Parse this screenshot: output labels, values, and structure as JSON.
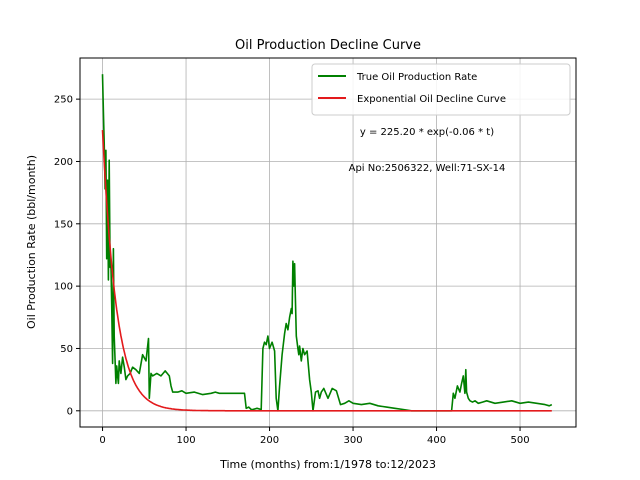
{
  "chart_data": {
    "type": "line",
    "title": "Oil Production Decline Curve",
    "xlabel": "Time (months) from:1/1978 to:12/2023",
    "ylabel": "Oil Production Rate (bbl/month)",
    "xlim": [
      -27,
      567
    ],
    "ylim": [
      -13,
      283
    ],
    "xticks": [
      0,
      100,
      200,
      300,
      400,
      500
    ],
    "yticks": [
      0,
      50,
      100,
      150,
      200,
      250
    ],
    "grid": true,
    "legend_position": "top-right",
    "annotations": [
      "y = 225.20 * exp(-0.06 * t)",
      "Api No:2506322, Well:71-SX-14"
    ],
    "series": [
      {
        "name": "True Oil Production Rate",
        "color": "#008000",
        "x": [
          0,
          1,
          2,
          3,
          4,
          5,
          6,
          7,
          8,
          9,
          10,
          11,
          12,
          13,
          14,
          15,
          16,
          17,
          18,
          19,
          20,
          22,
          24,
          26,
          28,
          30,
          33,
          36,
          40,
          44,
          48,
          52,
          55,
          56,
          58,
          60,
          65,
          70,
          75,
          80,
          82,
          84,
          88,
          90,
          95,
          100,
          110,
          120,
          130,
          135,
          140,
          150,
          160,
          170,
          172,
          175,
          178,
          180,
          185,
          190,
          192,
          194,
          196,
          198,
          200,
          203,
          206,
          208,
          210,
          212,
          215,
          218,
          220,
          222,
          224,
          226,
          227,
          228,
          229,
          230,
          231,
          232,
          233,
          234,
          235,
          236,
          238,
          240,
          242,
          245,
          248,
          250,
          252,
          255,
          258,
          260,
          262,
          265,
          270,
          275,
          280,
          285,
          290,
          295,
          300,
          310,
          320,
          330,
          340,
          350,
          360,
          370,
          380,
          390,
          400,
          410,
          418,
          420,
          422,
          425,
          428,
          430,
          432,
          434,
          435,
          436,
          438,
          440,
          443,
          446,
          450,
          455,
          460,
          470,
          480,
          490,
          500,
          510,
          520,
          530,
          535,
          538
        ],
        "y": [
          270,
          240,
          215,
          178,
          209,
          122,
          185,
          105,
          201,
          115,
          120,
          85,
          38,
          130,
          60,
          40,
          22,
          36,
          28,
          22,
          40,
          30,
          43,
          35,
          25,
          28,
          30,
          35,
          33,
          30,
          45,
          40,
          58,
          10,
          30,
          28,
          30,
          28,
          32,
          28,
          20,
          15,
          15,
          15,
          16,
          14,
          15,
          13,
          14,
          15,
          14,
          14,
          14,
          14,
          2,
          3,
          1,
          1,
          2,
          1,
          50,
          55,
          53,
          60,
          50,
          55,
          48,
          10,
          0,
          20,
          45,
          62,
          70,
          65,
          75,
          82,
          78,
          120,
          100,
          118,
          90,
          60,
          55,
          50,
          45,
          52,
          40,
          50,
          45,
          48,
          25,
          15,
          0,
          15,
          16,
          10,
          15,
          18,
          10,
          18,
          16,
          5,
          6,
          8,
          6,
          5,
          6,
          4,
          3,
          2,
          1,
          0,
          0,
          0,
          0,
          0,
          0,
          14,
          10,
          20,
          15,
          22,
          28,
          14,
          33,
          15,
          10,
          8,
          7,
          8,
          6,
          7,
          8,
          6,
          7,
          8,
          6,
          7,
          6,
          5,
          4,
          5
        ]
      },
      {
        "name": "Exponential Oil Decline Curve",
        "color": "#e31a1c",
        "formula": {
          "a": 225.2,
          "b": 0.06
        },
        "x_range": [
          0,
          538
        ]
      }
    ]
  }
}
